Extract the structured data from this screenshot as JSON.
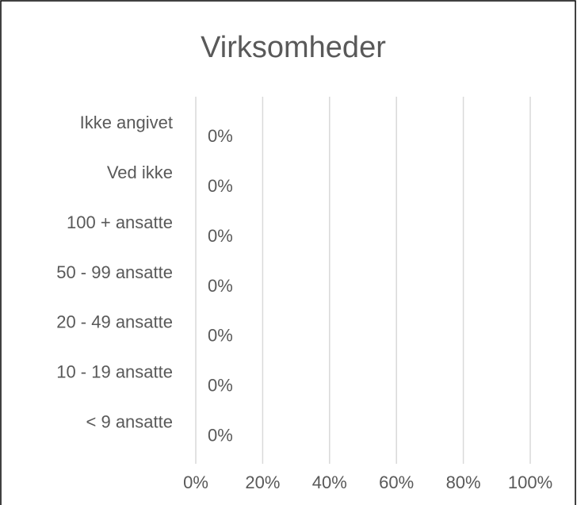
{
  "chart_data": {
    "type": "bar",
    "orientation": "horizontal",
    "title": "Virksomheder",
    "categories": [
      "Ikke angivet",
      "Ved ikke",
      "100 + ansatte",
      "50 - 99 ansatte",
      "20 - 49 ansatte",
      "10 - 19 ansatte",
      "< 9 ansatte"
    ],
    "values": [
      0,
      0,
      0,
      0,
      0,
      0,
      0
    ],
    "value_labels": [
      "0%",
      "0%",
      "0%",
      "0%",
      "0%",
      "0%",
      "0%"
    ],
    "color": "#4472c4",
    "xlim": [
      0,
      100
    ],
    "xticks": [
      {
        "value": 0,
        "label": "0%"
      },
      {
        "value": 20,
        "label": "20%"
      },
      {
        "value": 40,
        "label": "40%"
      },
      {
        "value": 60,
        "label": "60%"
      },
      {
        "value": 80,
        "label": "80%"
      },
      {
        "value": 100,
        "label": "100%"
      }
    ],
    "grid": true
  }
}
